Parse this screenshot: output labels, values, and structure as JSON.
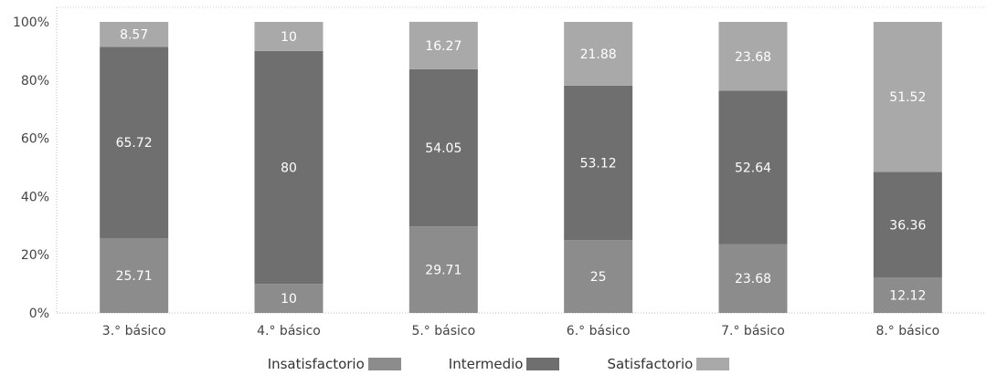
{
  "chart_data": {
    "type": "bar",
    "stacked": true,
    "categories": [
      "3.° básico",
      "4.° básico",
      "5.° básico",
      "6.° básico",
      "7.° básico",
      "8.° básico"
    ],
    "series": [
      {
        "name": "Insatisfactorio",
        "color": "#8c8c8c",
        "values": [
          25.71,
          10,
          29.71,
          25,
          23.68,
          12.12
        ]
      },
      {
        "name": "Intermedio",
        "color": "#6f6f6f",
        "values": [
          65.72,
          80,
          54.05,
          53.12,
          52.64,
          36.36
        ]
      },
      {
        "name": "Satisfactorio",
        "color": "#a9a9a9",
        "values": [
          8.57,
          10,
          16.27,
          21.88,
          23.68,
          51.52
        ]
      }
    ],
    "data_labels": [
      [
        "25.71",
        "10",
        "29.71",
        "25",
        "23.68",
        "12.12"
      ],
      [
        "65.72",
        "80",
        "54.05",
        "53.12",
        "52.64",
        "36.36"
      ],
      [
        "8.57",
        "10",
        "16.27",
        "21.88",
        "23.68",
        "51.52"
      ]
    ],
    "y_ticks": [
      "0%",
      "20%",
      "40%",
      "60%",
      "80%",
      "100%"
    ],
    "ylim": [
      0,
      100
    ],
    "grid": false,
    "legend_position": "bottom"
  }
}
